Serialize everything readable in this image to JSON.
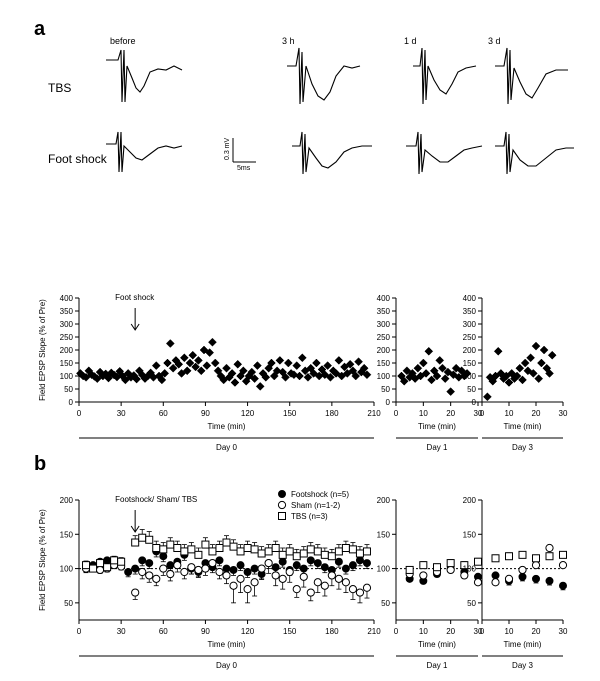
{
  "panel_labels": {
    "a": "a",
    "b": "b"
  },
  "traces": {
    "row_labels": [
      "TBS",
      "Foot shock"
    ],
    "column_labels": [
      "before",
      "3 h",
      "1 d",
      "3 d"
    ],
    "scale_bar": {
      "vertical": "0.3 mV",
      "horizontal": "5ms"
    }
  },
  "chart_data": [
    {
      "type": "scatter",
      "panel": "a",
      "subplot": "day0",
      "xlabel": "Time (min)",
      "ylabel": "Field EPSP Slope (% of Pre)",
      "xlim": [
        0,
        210
      ],
      "ylim": [
        0,
        400
      ],
      "xticks": [
        0,
        30,
        60,
        90,
        120,
        150,
        180,
        210
      ],
      "yticks": [
        0,
        50,
        100,
        150,
        200,
        250,
        300,
        350,
        400
      ],
      "period_label": "Day 0",
      "annotation": {
        "text": "Foot shock",
        "x": 30,
        "arrow": true
      },
      "series": [
        {
          "marker": "filled-diamond",
          "x": [
            1,
            3,
            5,
            7,
            9,
            11,
            13,
            15,
            17,
            19,
            21,
            23,
            25,
            27,
            29,
            31,
            33,
            35,
            37,
            39,
            41,
            43,
            45,
            47,
            49,
            51,
            53,
            55,
            57,
            59,
            61,
            63,
            65,
            67,
            69,
            71,
            73,
            75,
            77,
            79,
            81,
            83,
            85,
            87,
            89,
            91,
            93,
            95,
            97,
            99,
            101,
            103,
            105,
            107,
            109,
            111,
            113,
            115,
            117,
            119,
            121,
            123,
            125,
            127,
            129,
            131,
            133,
            135,
            137,
            139,
            141,
            143,
            145,
            147,
            149,
            151,
            153,
            155,
            157,
            159,
            161,
            163,
            165,
            167,
            169,
            171,
            173,
            175,
            177,
            179,
            181,
            183,
            185,
            187,
            189,
            191,
            193,
            195,
            197,
            199,
            201,
            203,
            205
          ],
          "y": [
            110,
            100,
            95,
            120,
            105,
            98,
            90,
            115,
            100,
            108,
            92,
            112,
            104,
            96,
            118,
            100,
            85,
            110,
            95,
            102,
            88,
            120,
            104,
            90,
            100,
            112,
            95,
            140,
            100,
            85,
            110,
            150,
            225,
            130,
            160,
            145,
            110,
            170,
            120,
            150,
            180,
            135,
            160,
            120,
            200,
            140,
            190,
            230,
            150,
            120,
            100,
            85,
            130,
            95,
            110,
            75,
            145,
            100,
            120,
            80,
            100,
            115,
            90,
            140,
            60,
            110,
            95,
            130,
            150,
            100,
            120,
            160,
            115,
            95,
            150,
            110,
            105,
            140,
            100,
            170,
            120,
            95,
            130,
            110,
            150,
            100,
            125,
            105,
            140,
            95,
            120,
            110,
            160,
            100,
            135,
            110,
            145,
            120,
            100,
            155,
            115,
            130,
            105
          ]
        }
      ]
    },
    {
      "type": "scatter",
      "panel": "a",
      "subplot": "day1",
      "xlabel": "Time (min)",
      "xlim": [
        0,
        30
      ],
      "ylim": [
        0,
        400
      ],
      "xticks": [
        0,
        10,
        20,
        30
      ],
      "yticks": [
        0,
        50,
        100,
        150,
        200,
        250,
        300,
        350,
        400
      ],
      "period_label": "Day 1",
      "series": [
        {
          "marker": "filled-diamond",
          "x": [
            2,
            3,
            4,
            5,
            6,
            7,
            8,
            9,
            10,
            11,
            12,
            13,
            14,
            15,
            16,
            17,
            18,
            19,
            20,
            21,
            22,
            23,
            24,
            25,
            26
          ],
          "y": [
            100,
            80,
            120,
            95,
            110,
            90,
            130,
            100,
            150,
            110,
            195,
            85,
            120,
            100,
            160,
            130,
            90,
            115,
            40,
            105,
            130,
            95,
            120,
            100,
            110
          ]
        }
      ]
    },
    {
      "type": "scatter",
      "panel": "a",
      "subplot": "day3",
      "xlabel": "Time (min)",
      "xlim": [
        0,
        30
      ],
      "ylim": [
        0,
        400
      ],
      "xticks": [
        0,
        10,
        20,
        30
      ],
      "yticks": [
        0,
        50,
        100,
        150,
        200,
        250,
        300,
        350,
        400
      ],
      "period_label": "Day 3",
      "series": [
        {
          "marker": "filled-diamond",
          "x": [
            2,
            3,
            4,
            5,
            6,
            7,
            8,
            9,
            10,
            11,
            12,
            13,
            14,
            15,
            16,
            17,
            18,
            19,
            20,
            21,
            22,
            23,
            24,
            25,
            26
          ],
          "y": [
            20,
            95,
            80,
            100,
            195,
            110,
            90,
            100,
            75,
            110,
            90,
            100,
            130,
            85,
            150,
            120,
            170,
            110,
            215,
            90,
            150,
            200,
            130,
            110,
            180
          ]
        }
      ]
    },
    {
      "type": "scatter",
      "panel": "b",
      "subplot": "day0",
      "xlabel": "Time (min)",
      "ylabel": "Field EPSP Slope (% of Pre)",
      "xlim": [
        0,
        210
      ],
      "ylim": [
        25,
        200
      ],
      "xticks": [
        0,
        30,
        60,
        90,
        120,
        150,
        180,
        210
      ],
      "yticks": [
        50,
        100,
        150,
        200
      ],
      "baseline": 100,
      "period_label": "Day 0",
      "annotation": {
        "text": "Footshock/ Sham/ TBS",
        "x": 30,
        "arrow": true
      },
      "legend": {
        "position": "top-right",
        "entries": [
          "Footshock (n=5)",
          "Sham (n=1-2)",
          "TBS (n=3)"
        ]
      },
      "series": [
        {
          "name": "Footshock (n=5)",
          "marker": "filled-circle",
          "x": [
            5,
            10,
            15,
            20,
            25,
            30,
            35,
            40,
            45,
            50,
            55,
            60,
            65,
            70,
            75,
            80,
            85,
            90,
            95,
            100,
            105,
            110,
            115,
            120,
            125,
            130,
            135,
            140,
            145,
            150,
            155,
            160,
            165,
            170,
            175,
            180,
            185,
            190,
            195,
            200,
            205
          ],
          "y": [
            100,
            105,
            110,
            112,
            108,
            110,
            95,
            100,
            112,
            108,
            125,
            118,
            105,
            110,
            120,
            100,
            95,
            108,
            102,
            112,
            100,
            98,
            105,
            95,
            100,
            92,
            108,
            102,
            110,
            98,
            105,
            100,
            112,
            108,
            102,
            98,
            110,
            100,
            105,
            112,
            108
          ],
          "err": [
            6,
            6,
            6,
            6,
            6,
            6,
            7,
            8,
            8,
            8,
            8,
            8,
            8,
            8,
            8,
            8,
            8,
            8,
            8,
            8,
            8,
            8,
            8,
            8,
            8,
            8,
            8,
            8,
            8,
            8,
            8,
            8,
            8,
            8,
            8,
            8,
            8,
            8,
            8,
            8,
            8
          ]
        },
        {
          "name": "Sham (n=1-2)",
          "marker": "open-circle",
          "x": [
            5,
            10,
            15,
            20,
            25,
            30,
            40,
            45,
            50,
            55,
            60,
            65,
            70,
            75,
            80,
            85,
            90,
            95,
            100,
            105,
            110,
            115,
            120,
            125,
            130,
            135,
            140,
            145,
            150,
            155,
            160,
            165,
            170,
            175,
            180,
            185,
            190,
            195,
            200,
            205
          ],
          "y": [
            100,
            102,
            98,
            100,
            105,
            103,
            65,
            95,
            90,
            85,
            100,
            92,
            105,
            95,
            102,
            98,
            100,
            108,
            95,
            90,
            75,
            85,
            70,
            80,
            100,
            108,
            90,
            85,
            95,
            70,
            88,
            65,
            80,
            75,
            90,
            85,
            80,
            70,
            65,
            72
          ],
          "err": [
            5,
            5,
            5,
            5,
            5,
            5,
            10,
            10,
            10,
            10,
            10,
            10,
            10,
            10,
            10,
            10,
            10,
            10,
            10,
            12,
            25,
            20,
            20,
            20,
            15,
            15,
            15,
            15,
            15,
            12,
            15,
            12,
            15,
            15,
            15,
            15,
            15,
            15,
            15,
            15
          ]
        },
        {
          "name": "TBS (n=3)",
          "marker": "open-square",
          "x": [
            5,
            10,
            15,
            20,
            25,
            30,
            40,
            45,
            50,
            55,
            60,
            65,
            70,
            75,
            80,
            85,
            90,
            95,
            100,
            105,
            110,
            115,
            120,
            125,
            130,
            135,
            140,
            145,
            150,
            155,
            160,
            165,
            170,
            175,
            180,
            185,
            190,
            195,
            200,
            205
          ],
          "y": [
            105,
            100,
            108,
            102,
            112,
            110,
            138,
            145,
            142,
            130,
            128,
            135,
            130,
            125,
            128,
            120,
            135,
            125,
            130,
            138,
            132,
            125,
            130,
            128,
            122,
            125,
            130,
            120,
            125,
            118,
            122,
            128,
            125,
            120,
            118,
            125,
            130,
            128,
            122,
            125
          ],
          "err": [
            6,
            6,
            6,
            6,
            6,
            6,
            10,
            12,
            12,
            10,
            10,
            10,
            10,
            10,
            10,
            10,
            10,
            10,
            10,
            10,
            10,
            10,
            10,
            10,
            10,
            10,
            10,
            10,
            10,
            10,
            10,
            10,
            10,
            10,
            10,
            10,
            10,
            10,
            10,
            10
          ]
        }
      ]
    },
    {
      "type": "scatter",
      "panel": "b",
      "subplot": "day1",
      "xlabel": "Time (min)",
      "xlim": [
        0,
        30
      ],
      "ylim": [
        25,
        200
      ],
      "xticks": [
        0,
        10,
        20,
        30
      ],
      "yticks": [
        50,
        100,
        150,
        200
      ],
      "baseline": 100,
      "period_label": "Day 1",
      "series": [
        {
          "name": "Footshock (n=5)",
          "marker": "filled-circle",
          "x": [
            5,
            10,
            15,
            20,
            25,
            30
          ],
          "y": [
            85,
            82,
            92,
            100,
            95,
            88
          ],
          "err": [
            4,
            4,
            4,
            4,
            4,
            4
          ]
        },
        {
          "name": "Sham (n=1-2)",
          "marker": "open-circle",
          "x": [
            5,
            10,
            15,
            20,
            25,
            30
          ],
          "y": [
            92,
            90,
            95,
            98,
            90,
            80
          ],
          "err": [
            0,
            0,
            0,
            0,
            0,
            0
          ]
        },
        {
          "name": "TBS (n=3)",
          "marker": "open-square",
          "x": [
            5,
            10,
            15,
            20,
            25,
            30
          ],
          "y": [
            98,
            105,
            102,
            108,
            105,
            110
          ],
          "err": [
            5,
            5,
            5,
            5,
            5,
            5
          ]
        }
      ]
    },
    {
      "type": "scatter",
      "panel": "b",
      "subplot": "day3",
      "xlabel": "Time (min)",
      "xlim": [
        0,
        30
      ],
      "ylim": [
        25,
        200
      ],
      "xticks": [
        0,
        10,
        20,
        30
      ],
      "yticks": [
        50,
        100,
        150,
        200
      ],
      "baseline": 100,
      "period_label": "Day 3",
      "series": [
        {
          "name": "Footshock (n=5)",
          "marker": "filled-circle",
          "x": [
            5,
            10,
            15,
            20,
            25,
            30
          ],
          "y": [
            90,
            82,
            88,
            85,
            82,
            75
          ],
          "err": [
            6,
            6,
            6,
            6,
            6,
            6
          ]
        },
        {
          "name": "Sham (n=1-2)",
          "marker": "open-circle",
          "x": [
            5,
            10,
            15,
            20,
            25,
            30
          ],
          "y": [
            80,
            85,
            98,
            105,
            130,
            105
          ],
          "err": [
            0,
            0,
            0,
            0,
            0,
            0
          ]
        },
        {
          "name": "TBS (n=3)",
          "marker": "open-square",
          "x": [
            5,
            10,
            15,
            20,
            25,
            30
          ],
          "y": [
            115,
            118,
            120,
            115,
            118,
            120
          ],
          "err": [
            5,
            5,
            5,
            5,
            5,
            5
          ]
        }
      ]
    }
  ]
}
